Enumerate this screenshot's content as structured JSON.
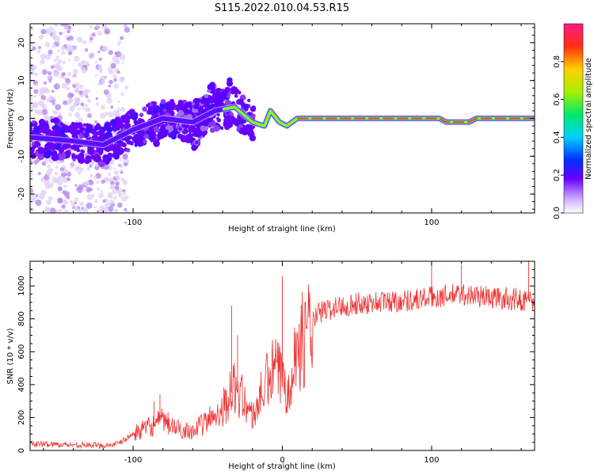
{
  "title": "S115.2022.010.04.53.R15",
  "colormap": [
    "#ffffff",
    "#d9c6f5",
    "#a877ee",
    "#6f2ae6",
    "#4a10ff",
    "#1070ff",
    "#11d9d9",
    "#19e06a",
    "#b9f01a",
    "#ffd000",
    "#ff3f1a",
    "#ff1a8a"
  ],
  "chart_data": [
    {
      "type": "heatmap",
      "title": "S115.2022.010.04.53.R15",
      "xlabel": "Height of straight line (km)",
      "ylabel": "Frequency (Hz)",
      "xlim": [
        -169,
        169
      ],
      "ylim": [
        -25,
        25
      ],
      "xticks": [
        -100,
        100
      ],
      "yticks": [
        -20,
        -10,
        0,
        10,
        20
      ],
      "grid": false,
      "colorbar": {
        "label": "Normalized spectral amplitude",
        "range": [
          0,
          1
        ],
        "ticks": [
          0.0,
          0.2,
          0.4,
          0.6,
          0.8
        ]
      },
      "ridge": {
        "description": "dominant frequency line",
        "points": [
          {
            "x": -169,
            "y": -5
          },
          {
            "x": -140,
            "y": -6
          },
          {
            "x": -120,
            "y": -7
          },
          {
            "x": -100,
            "y": -3
          },
          {
            "x": -80,
            "y": 0
          },
          {
            "x": -60,
            "y": -1
          },
          {
            "x": -45,
            "y": 2
          },
          {
            "x": -32,
            "y": 3
          },
          {
            "x": -20,
            "y": -1
          },
          {
            "x": -12,
            "y": -2
          },
          {
            "x": -8,
            "y": 2
          },
          {
            "x": -2,
            "y": -1
          },
          {
            "x": 3,
            "y": -2
          },
          {
            "x": 10,
            "y": 0
          },
          {
            "x": 105,
            "y": 0
          },
          {
            "x": 110,
            "y": -1
          },
          {
            "x": 125,
            "y": -1
          },
          {
            "x": 130,
            "y": 0
          },
          {
            "x": 169,
            "y": 0
          }
        ]
      }
    },
    {
      "type": "line",
      "xlabel": "Height of straight line (km)",
      "ylabel": "SNR (10 * v/v)",
      "xlim": [
        -169,
        169
      ],
      "ylim": [
        0,
        1150
      ],
      "xticks": [
        -100,
        0,
        100
      ],
      "yticks": [
        0,
        200,
        400,
        600,
        800,
        1000
      ],
      "grid": false,
      "color": "#ee3333",
      "series": [
        {
          "trend": [
            {
              "x": -169,
              "y": 40
            },
            {
              "x": -140,
              "y": 35
            },
            {
              "x": -120,
              "y": 30
            },
            {
              "x": -110,
              "y": 40
            },
            {
              "x": -100,
              "y": 100
            },
            {
              "x": -90,
              "y": 140
            },
            {
              "x": -80,
              "y": 180
            },
            {
              "x": -70,
              "y": 130
            },
            {
              "x": -60,
              "y": 120
            },
            {
              "x": -50,
              "y": 180
            },
            {
              "x": -40,
              "y": 260
            },
            {
              "x": -32,
              "y": 380
            },
            {
              "x": -25,
              "y": 300
            },
            {
              "x": -20,
              "y": 200
            },
            {
              "x": -15,
              "y": 320
            },
            {
              "x": -10,
              "y": 420
            },
            {
              "x": -5,
              "y": 500
            },
            {
              "x": 0,
              "y": 430
            },
            {
              "x": 3,
              "y": 380
            },
            {
              "x": 8,
              "y": 560
            },
            {
              "x": 15,
              "y": 700
            },
            {
              "x": 25,
              "y": 840
            },
            {
              "x": 40,
              "y": 880
            },
            {
              "x": 60,
              "y": 900
            },
            {
              "x": 80,
              "y": 910
            },
            {
              "x": 100,
              "y": 930
            },
            {
              "x": 120,
              "y": 950
            },
            {
              "x": 140,
              "y": 930
            },
            {
              "x": 169,
              "y": 910
            }
          ],
          "spikes": [
            {
              "x": -86,
              "y": 300
            },
            {
              "x": -82,
              "y": 340
            },
            {
              "x": -34,
              "y": 880
            },
            {
              "x": -30,
              "y": 700
            },
            {
              "x": 0,
              "y": 1060
            },
            {
              "x": 100,
              "y": 1120
            },
            {
              "x": 120,
              "y": 1130
            },
            {
              "x": 165,
              "y": 1150
            }
          ]
        }
      ]
    }
  ]
}
